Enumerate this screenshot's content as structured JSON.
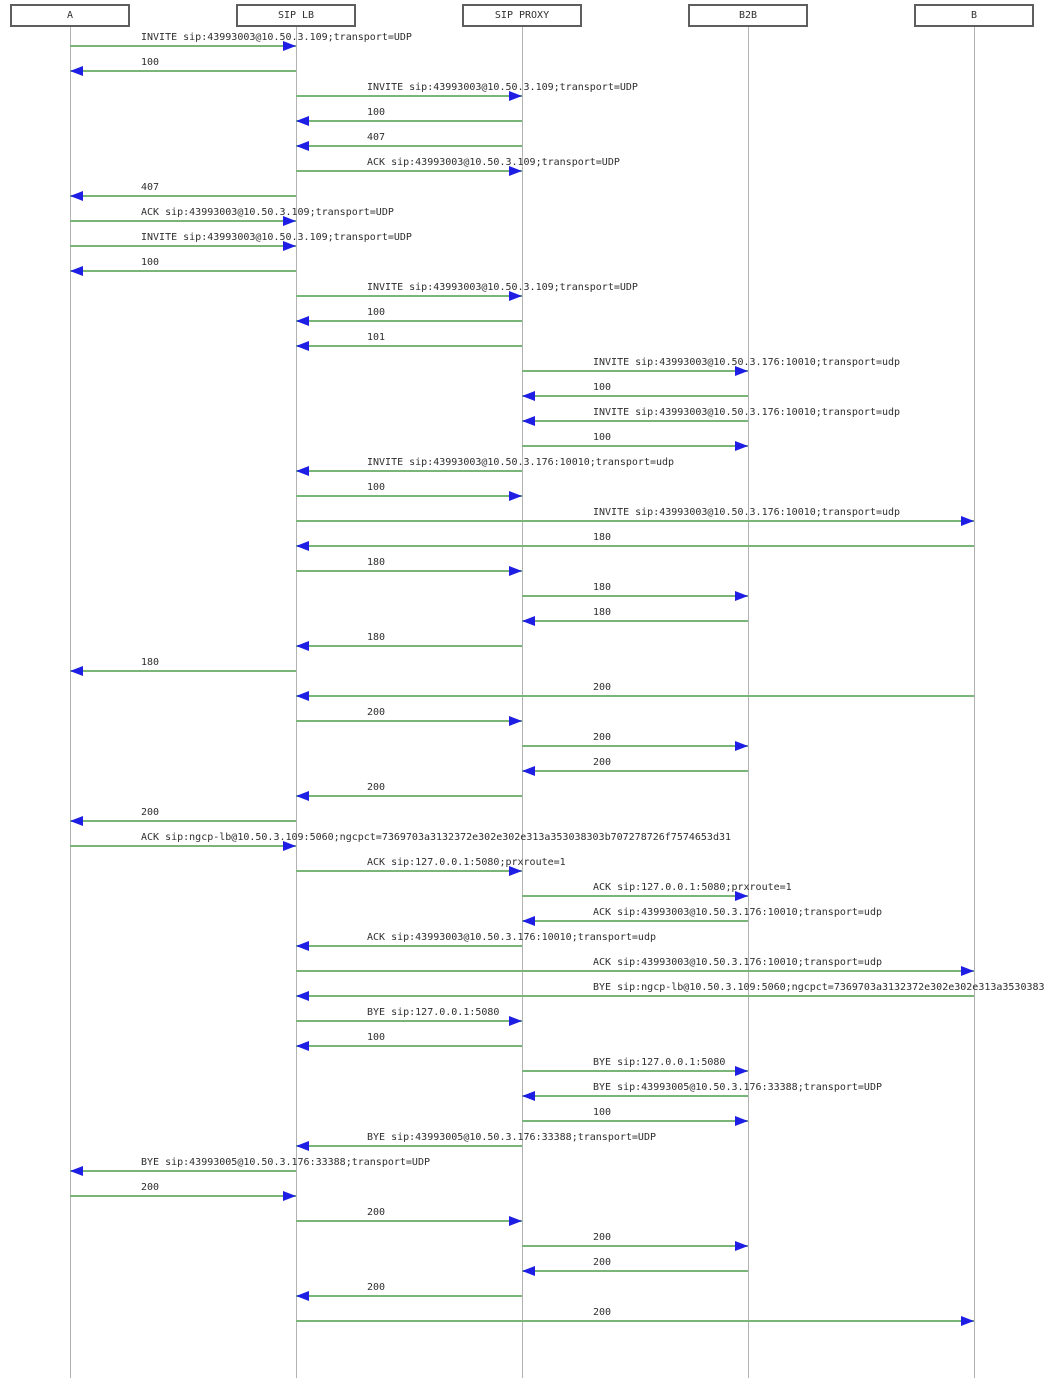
{
  "diagram": {
    "actors": [
      "A",
      "SIP LB",
      "SIP PROXY",
      "B2B",
      "B"
    ],
    "messages": [
      {
        "from": "A",
        "to": "SIP LB",
        "label": "INVITE sip:43993003@10.50.3.109;transport=UDP"
      },
      {
        "from": "SIP LB",
        "to": "A",
        "label": "100"
      },
      {
        "from": "SIP LB",
        "to": "SIP PROXY",
        "label": "INVITE sip:43993003@10.50.3.109;transport=UDP"
      },
      {
        "from": "SIP PROXY",
        "to": "SIP LB",
        "label": "100"
      },
      {
        "from": "SIP PROXY",
        "to": "SIP LB",
        "label": "407"
      },
      {
        "from": "SIP LB",
        "to": "SIP PROXY",
        "label": "ACK sip:43993003@10.50.3.109;transport=UDP"
      },
      {
        "from": "SIP LB",
        "to": "A",
        "label": "407"
      },
      {
        "from": "A",
        "to": "SIP LB",
        "label": "ACK sip:43993003@10.50.3.109;transport=UDP"
      },
      {
        "from": "A",
        "to": "SIP LB",
        "label": "INVITE sip:43993003@10.50.3.109;transport=UDP"
      },
      {
        "from": "SIP LB",
        "to": "A",
        "label": "100"
      },
      {
        "from": "SIP LB",
        "to": "SIP PROXY",
        "label": "INVITE sip:43993003@10.50.3.109;transport=UDP"
      },
      {
        "from": "SIP PROXY",
        "to": "SIP LB",
        "label": "100"
      },
      {
        "from": "SIP PROXY",
        "to": "SIP LB",
        "label": "101"
      },
      {
        "from": "SIP PROXY",
        "to": "B2B",
        "label": "INVITE sip:43993003@10.50.3.176:10010;transport=udp"
      },
      {
        "from": "B2B",
        "to": "SIP PROXY",
        "label": "100"
      },
      {
        "from": "B2B",
        "to": "SIP PROXY",
        "label": "INVITE sip:43993003@10.50.3.176:10010;transport=udp"
      },
      {
        "from": "SIP PROXY",
        "to": "B2B",
        "label": "100"
      },
      {
        "from": "SIP PROXY",
        "to": "SIP LB",
        "label": "INVITE sip:43993003@10.50.3.176:10010;transport=udp"
      },
      {
        "from": "SIP LB",
        "to": "SIP PROXY",
        "label": "100"
      },
      {
        "from": "SIP LB",
        "to": "B",
        "label": "INVITE sip:43993003@10.50.3.176:10010;transport=udp"
      },
      {
        "from": "B",
        "to": "SIP LB",
        "label": "180"
      },
      {
        "from": "SIP LB",
        "to": "SIP PROXY",
        "label": "180"
      },
      {
        "from": "SIP PROXY",
        "to": "B2B",
        "label": "180"
      },
      {
        "from": "B2B",
        "to": "SIP PROXY",
        "label": "180"
      },
      {
        "from": "SIP PROXY",
        "to": "SIP LB",
        "label": "180"
      },
      {
        "from": "SIP LB",
        "to": "A",
        "label": "180"
      },
      {
        "from": "B",
        "to": "SIP LB",
        "label": "200"
      },
      {
        "from": "SIP LB",
        "to": "SIP PROXY",
        "label": "200"
      },
      {
        "from": "SIP PROXY",
        "to": "B2B",
        "label": "200"
      },
      {
        "from": "B2B",
        "to": "SIP PROXY",
        "label": "200"
      },
      {
        "from": "SIP PROXY",
        "to": "SIP LB",
        "label": "200"
      },
      {
        "from": "SIP LB",
        "to": "A",
        "label": "200"
      },
      {
        "from": "A",
        "to": "SIP LB",
        "label": "ACK sip:ngcp-lb@10.50.3.109:5060;ngcpct=7369703a3132372e302e302e313a353038303b707278726f7574653d31"
      },
      {
        "from": "SIP LB",
        "to": "SIP PROXY",
        "label": "ACK sip:127.0.0.1:5080;prxroute=1"
      },
      {
        "from": "SIP PROXY",
        "to": "B2B",
        "label": "ACK sip:127.0.0.1:5080;prxroute=1"
      },
      {
        "from": "B2B",
        "to": "SIP PROXY",
        "label": "ACK sip:43993003@10.50.3.176:10010;transport=udp"
      },
      {
        "from": "SIP PROXY",
        "to": "SIP LB",
        "label": "ACK sip:43993003@10.50.3.176:10010;transport=udp"
      },
      {
        "from": "SIP LB",
        "to": "B",
        "label": "ACK sip:43993003@10.50.3.176:10010;transport=udp"
      },
      {
        "from": "B",
        "to": "SIP LB",
        "label": "BYE sip:ngcp-lb@10.50.3.109:5060;ngcpct=7369703a3132372e302e302e313a3530383"
      },
      {
        "from": "SIP LB",
        "to": "SIP PROXY",
        "label": "BYE sip:127.0.0.1:5080"
      },
      {
        "from": "SIP PROXY",
        "to": "SIP LB",
        "label": "100"
      },
      {
        "from": "SIP PROXY",
        "to": "B2B",
        "label": "BYE sip:127.0.0.1:5080"
      },
      {
        "from": "B2B",
        "to": "SIP PROXY",
        "label": "BYE sip:43993005@10.50.3.176:33388;transport=UDP"
      },
      {
        "from": "SIP PROXY",
        "to": "B2B",
        "label": "100"
      },
      {
        "from": "SIP PROXY",
        "to": "SIP LB",
        "label": "BYE sip:43993005@10.50.3.176:33388;transport=UDP"
      },
      {
        "from": "SIP LB",
        "to": "A",
        "label": "BYE sip:43993005@10.50.3.176:33388;transport=UDP"
      },
      {
        "from": "A",
        "to": "SIP LB",
        "label": "200"
      },
      {
        "from": "SIP LB",
        "to": "SIP PROXY",
        "label": "200"
      },
      {
        "from": "SIP PROXY",
        "to": "B2B",
        "label": "200"
      },
      {
        "from": "B2B",
        "to": "SIP PROXY",
        "label": "200"
      },
      {
        "from": "SIP PROXY",
        "to": "SIP LB",
        "label": "200"
      },
      {
        "from": "SIP LB",
        "to": "B",
        "label": "200"
      }
    ],
    "colors": {
      "message_line": "#79b579",
      "arrowhead": "#1e1ee4",
      "lifeline": "#b2b2b2",
      "actor_border": "#5e5e5e",
      "label_text": "#2e2e2e"
    }
  }
}
